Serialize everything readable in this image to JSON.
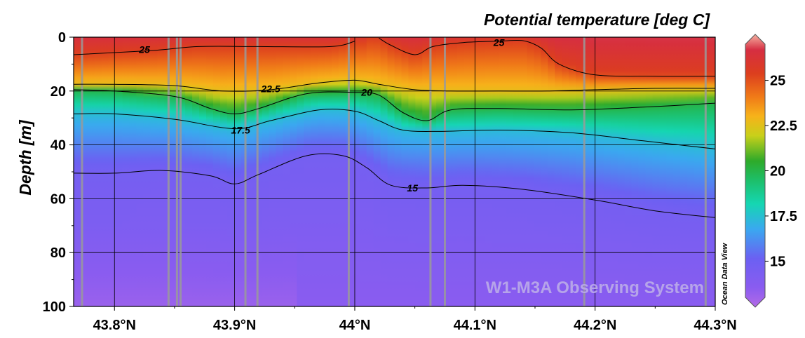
{
  "chart_data": {
    "type": "heatmap",
    "title": "Potential temperature [deg C]",
    "ylabel": "Depth [m]",
    "xlabel": "",
    "xlim": [
      43.766,
      44.3
    ],
    "ylim": [
      0,
      100
    ],
    "x_ticks": [
      {
        "value": 43.8,
        "label": "43.8°N"
      },
      {
        "value": 43.9,
        "label": "43.9°N"
      },
      {
        "value": 44.0,
        "label": "44°N"
      },
      {
        "value": 44.1,
        "label": "44.1°N"
      },
      {
        "value": 44.2,
        "label": "44.2°N"
      },
      {
        "value": 44.3,
        "label": "44.3°N"
      }
    ],
    "y_ticks": [
      {
        "value": 0,
        "label": "0"
      },
      {
        "value": 20,
        "label": "20"
      },
      {
        "value": 40,
        "label": "40"
      },
      {
        "value": 60,
        "label": "60"
      },
      {
        "value": 80,
        "label": "80"
      },
      {
        "value": 100,
        "label": "100"
      }
    ],
    "colorbar": {
      "range": [
        13,
        27
      ],
      "ticks": [
        {
          "value": 15,
          "label": "15"
        },
        {
          "value": 17.5,
          "label": "17.5"
        },
        {
          "value": 20,
          "label": "20"
        },
        {
          "value": 22.5,
          "label": "22.5"
        },
        {
          "value": 25,
          "label": "25"
        }
      ],
      "stops": [
        {
          "value": 13,
          "color": "#b36ae6"
        },
        {
          "value": 14,
          "color": "#8a5cf0"
        },
        {
          "value": 15.5,
          "color": "#6b60f2"
        },
        {
          "value": 17,
          "color": "#3aa8f0"
        },
        {
          "value": 18.3,
          "color": "#15d6b2"
        },
        {
          "value": 19.5,
          "color": "#1dbf6a"
        },
        {
          "value": 20.5,
          "color": "#2eaa2a"
        },
        {
          "value": 21.8,
          "color": "#c8d01a"
        },
        {
          "value": 22.8,
          "color": "#f7b21a"
        },
        {
          "value": 23.8,
          "color": "#f07a18"
        },
        {
          "value": 25,
          "color": "#dc3e1e"
        },
        {
          "value": 26.2,
          "color": "#d62e42"
        },
        {
          "value": 27,
          "color": "#f5b2a2"
        }
      ]
    },
    "stations_lat": [
      43.773,
      43.845,
      43.852,
      43.855,
      43.909,
      43.919,
      43.995,
      44.063,
      44.075,
      44.191,
      44.292
    ],
    "contours": [
      {
        "level": 25,
        "label": "25",
        "points": [
          [
            43.766,
            6.5
          ],
          [
            43.83,
            5
          ],
          [
            43.87,
            3.5
          ],
          [
            43.92,
            3.5
          ],
          [
            43.98,
            3.5
          ],
          [
            44.0,
            1.5
          ]
        ]
      },
      {
        "level": 25,
        "label": "25",
        "points": [
          [
            44.02,
            0.3
          ],
          [
            44.03,
            3
          ],
          [
            44.05,
            6.5
          ],
          [
            44.065,
            3.5
          ],
          [
            44.09,
            2
          ],
          [
            44.12,
            1.5
          ],
          [
            44.14,
            1.3
          ],
          [
            44.155,
            4
          ],
          [
            44.17,
            10
          ],
          [
            44.2,
            14
          ],
          [
            44.25,
            14.5
          ],
          [
            44.3,
            14.5
          ]
        ]
      },
      {
        "level": 22.5,
        "label": "22.5",
        "points": [
          [
            43.766,
            17.5
          ],
          [
            43.8,
            17.5
          ],
          [
            43.85,
            18
          ],
          [
            43.89,
            20
          ],
          [
            43.93,
            19.5
          ],
          [
            43.97,
            17
          ],
          [
            44.0,
            16
          ],
          [
            44.02,
            17.5
          ],
          [
            44.05,
            19.5
          ],
          [
            44.08,
            20
          ],
          [
            44.12,
            20
          ],
          [
            44.16,
            20
          ],
          [
            44.2,
            19.5
          ],
          [
            44.25,
            19
          ],
          [
            44.3,
            19
          ]
        ]
      },
      {
        "level": 20,
        "label": "20",
        "points": [
          [
            43.766,
            19.5
          ],
          [
            43.8,
            20
          ],
          [
            43.85,
            22
          ],
          [
            43.88,
            26.5
          ],
          [
            43.9,
            28.5
          ],
          [
            43.92,
            26.5
          ],
          [
            43.96,
            21
          ],
          [
            44.0,
            20.5
          ],
          [
            44.02,
            21.5
          ],
          [
            44.04,
            28
          ],
          [
            44.06,
            31
          ],
          [
            44.08,
            27
          ],
          [
            44.12,
            26.5
          ],
          [
            44.18,
            27
          ],
          [
            44.24,
            26
          ],
          [
            44.3,
            24.5
          ]
        ]
      },
      {
        "level": 17.5,
        "label": "17.5",
        "points": [
          [
            43.766,
            28.5
          ],
          [
            43.8,
            28.5
          ],
          [
            43.85,
            30.5
          ],
          [
            43.9,
            34
          ],
          [
            43.93,
            31
          ],
          [
            43.97,
            27
          ],
          [
            44.0,
            27.5
          ],
          [
            44.02,
            31
          ],
          [
            44.04,
            34.5
          ],
          [
            44.07,
            35
          ],
          [
            44.12,
            34.5
          ],
          [
            44.18,
            35.5
          ],
          [
            44.24,
            38.5
          ],
          [
            44.3,
            41.5
          ]
        ]
      },
      {
        "level": 15,
        "label": "15",
        "points": [
          [
            43.766,
            50.5
          ],
          [
            43.8,
            50.5
          ],
          [
            43.84,
            49.5
          ],
          [
            43.88,
            51.5
          ],
          [
            43.9,
            54.5
          ],
          [
            43.92,
            51
          ],
          [
            43.96,
            44
          ],
          [
            43.99,
            44
          ],
          [
            44.01,
            48.5
          ],
          [
            44.03,
            55
          ],
          [
            44.06,
            56
          ],
          [
            44.09,
            55
          ],
          [
            44.14,
            56.5
          ],
          [
            44.2,
            60.5
          ],
          [
            44.25,
            64.5
          ],
          [
            44.3,
            67
          ]
        ]
      }
    ],
    "contour_label_positions": [
      {
        "label": "25",
        "lat": 43.825,
        "depth": 4.5
      },
      {
        "label": "25",
        "lat": 44.12,
        "depth": 2
      },
      {
        "label": "22.5",
        "lat": 43.93,
        "depth": 19.2
      },
      {
        "label": "20",
        "lat": 44.01,
        "depth": 20.5
      },
      {
        "label": "17.5",
        "lat": 43.905,
        "depth": 34.5
      },
      {
        "label": "15",
        "lat": 44.048,
        "depth": 56
      }
    ]
  },
  "watermark": "W1-M3A Observing System",
  "credit": "Ocean Data View"
}
